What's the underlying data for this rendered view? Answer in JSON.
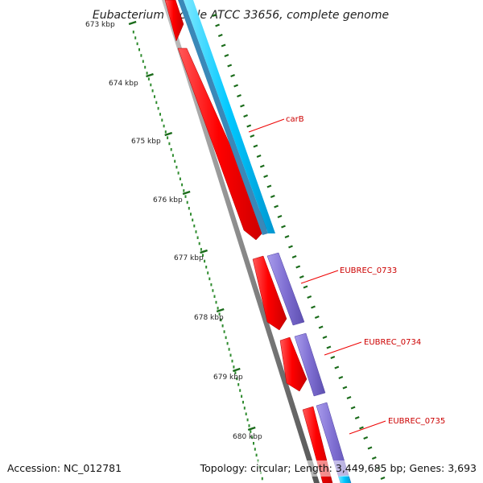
{
  "title": "Eubacterium rectale ATCC 33656, complete genome",
  "footer": {
    "accession": "Accession: NC_012781",
    "summary": "Topology: circular; Length: 3,449,685 bp; Genes: 3,693"
  },
  "ruler": {
    "labels": [
      "673 kbp",
      "674 kbp",
      "675 kbp",
      "676 kbp",
      "677 kbp",
      "678 kbp",
      "679 kbp",
      "680 kbp"
    ],
    "major_tick_color": "#1a6b1a",
    "minor_tick_color": "#2e8b2e"
  },
  "gene_labels": [
    "carB",
    "EUBREC_0733",
    "EUBREC_0734",
    "EUBREC_0735"
  ],
  "colors": {
    "backbone": "#8c8c8c",
    "cds_forward": "#ff0000",
    "cds_translated": "#8070d0",
    "cds_translated_alt": "#00c8ff",
    "cds_translated_alt_dark": "#3a88b8",
    "label_line": "#ee0000"
  }
}
